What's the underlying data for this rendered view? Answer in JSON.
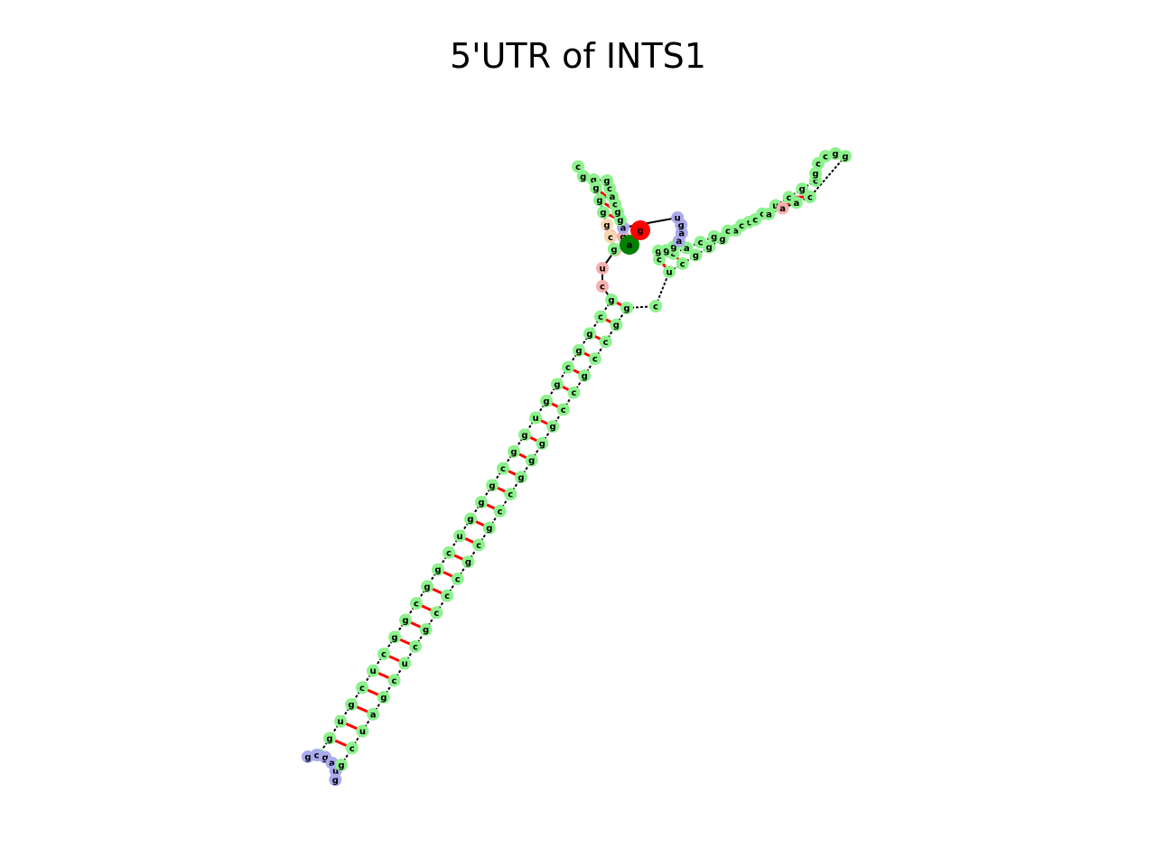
{
  "title": "5'UTR of INTS1",
  "colors": {
    "stem": "#8cf28c",
    "hairpin": "#aaaaee",
    "interior": "#fff2a8",
    "multiloop": "#f5b0b0",
    "bulge": "#f8d8b0",
    "pair_bond": "#ff0000",
    "start_marker": "#008000",
    "end_marker": "#ff0000"
  },
  "markers": {
    "start": "a",
    "end": "g"
  },
  "nucleotides": [
    {
      "b": "a",
      "t": "m"
    },
    {
      "b": "g",
      "t": "m"
    },
    {
      "b": "c",
      "t": "m"
    },
    {
      "b": "c",
      "t": "m"
    },
    {
      "b": "u",
      "t": "m"
    },
    {
      "b": "c",
      "t": "m"
    },
    {
      "b": "g",
      "t": "s"
    },
    {
      "b": "c",
      "t": "s"
    },
    {
      "b": "g",
      "t": "s"
    },
    {
      "b": "g",
      "t": "s"
    },
    {
      "b": "c",
      "t": "s"
    },
    {
      "b": "g",
      "t": "s"
    },
    {
      "b": "g",
      "t": "s"
    },
    {
      "b": "u",
      "t": "s"
    },
    {
      "b": "g",
      "t": "s"
    },
    {
      "b": "g",
      "t": "s"
    },
    {
      "b": "c",
      "t": "s"
    },
    {
      "b": "g",
      "t": "s"
    },
    {
      "b": "g",
      "t": "s"
    },
    {
      "b": "g",
      "t": "s"
    },
    {
      "b": "u",
      "t": "s"
    },
    {
      "b": "c",
      "t": "s"
    },
    {
      "b": "g",
      "t": "s"
    },
    {
      "b": "g",
      "t": "s"
    },
    {
      "b": "c",
      "t": "s"
    },
    {
      "b": "g",
      "t": "s"
    },
    {
      "b": "g",
      "t": "s"
    },
    {
      "b": "c",
      "t": "s"
    },
    {
      "b": "u",
      "t": "s"
    },
    {
      "b": "c",
      "t": "s"
    },
    {
      "b": "g",
      "t": "s"
    },
    {
      "b": "u",
      "t": "s"
    },
    {
      "b": "g",
      "t": "s"
    },
    {
      "b": "c",
      "t": "s"
    },
    {
      "b": "g",
      "t": "h"
    },
    {
      "b": "c",
      "t": "h"
    },
    {
      "b": "g",
      "t": "h"
    },
    {
      "b": "a",
      "t": "h"
    },
    {
      "b": "u",
      "t": "h"
    },
    {
      "b": "g",
      "t": "h"
    },
    {
      "b": "g",
      "t": "s"
    },
    {
      "b": "c",
      "t": "s"
    },
    {
      "b": "u",
      "t": "s"
    },
    {
      "b": "a",
      "t": "s"
    },
    {
      "b": "g",
      "t": "s"
    },
    {
      "b": "c",
      "t": "s"
    },
    {
      "b": "u",
      "t": "s"
    },
    {
      "b": "c",
      "t": "s"
    },
    {
      "b": "g",
      "t": "s"
    },
    {
      "b": "c",
      "t": "s"
    },
    {
      "b": "c",
      "t": "s"
    },
    {
      "b": "c",
      "t": "s"
    },
    {
      "b": "g",
      "t": "s"
    },
    {
      "b": "c",
      "t": "s"
    },
    {
      "b": "g",
      "t": "s"
    },
    {
      "b": "c",
      "t": "s"
    },
    {
      "b": "c",
      "t": "s"
    },
    {
      "b": "g",
      "t": "s"
    },
    {
      "b": "g",
      "t": "s"
    },
    {
      "b": "g",
      "t": "s"
    },
    {
      "b": "g",
      "t": "s"
    },
    {
      "b": "c",
      "t": "s"
    },
    {
      "b": "c",
      "t": "s"
    },
    {
      "b": "g",
      "t": "s"
    },
    {
      "b": "c",
      "t": "s"
    },
    {
      "b": "c",
      "t": "s"
    },
    {
      "b": "g",
      "t": "s"
    },
    {
      "b": "g",
      "t": "s"
    },
    {
      "b": "c",
      "t": "s"
    },
    {
      "b": "u",
      "t": "s"
    },
    {
      "b": "c",
      "t": "s"
    },
    {
      "b": "g",
      "t": "s"
    },
    {
      "b": "g",
      "t": "s"
    },
    {
      "b": "g",
      "t": "s"
    },
    {
      "b": "a",
      "t": "s"
    },
    {
      "b": "c",
      "t": "s"
    },
    {
      "b": "c",
      "t": "s"
    },
    {
      "b": "u",
      "t": "s"
    },
    {
      "b": "c",
      "t": "s"
    },
    {
      "b": "g",
      "t": "s"
    },
    {
      "b": "c",
      "t": "s"
    },
    {
      "b": "g",
      "t": "s"
    },
    {
      "b": "c",
      "t": "s"
    },
    {
      "b": "c",
      "t": "s"
    },
    {
      "b": "g",
      "t": "s"
    },
    {
      "b": "g",
      "t": "s"
    },
    {
      "b": "c",
      "t": "s"
    },
    {
      "b": "a",
      "t": "s"
    },
    {
      "b": "a",
      "t": "m"
    },
    {
      "b": "a",
      "t": "s"
    },
    {
      "b": "c",
      "t": "s"
    },
    {
      "b": "c",
      "t": "s"
    },
    {
      "b": "c",
      "t": "s"
    },
    {
      "b": "g",
      "t": "s"
    },
    {
      "b": "c",
      "t": "s"
    },
    {
      "b": "a",
      "t": "s"
    },
    {
      "b": "c",
      "t": "s"
    },
    {
      "b": "c",
      "t": "s"
    },
    {
      "b": "g",
      "t": "s"
    },
    {
      "b": "g",
      "t": "s"
    },
    {
      "b": "g",
      "t": "s"
    },
    {
      "b": "a",
      "t": "h"
    },
    {
      "b": "a",
      "t": "h"
    },
    {
      "b": "g",
      "t": "h"
    },
    {
      "b": "u",
      "t": "h"
    },
    {
      "b": "a",
      "t": "h"
    },
    {
      "b": "g",
      "t": "s"
    },
    {
      "b": "g",
      "t": "s"
    },
    {
      "b": "c",
      "t": "s"
    },
    {
      "b": "a",
      "t": "s"
    },
    {
      "b": "c",
      "t": "s"
    },
    {
      "b": "g",
      "t": "s"
    },
    {
      "b": "g",
      "t": "s"
    },
    {
      "b": "g",
      "t": "s"
    },
    {
      "b": "c",
      "t": "s"
    },
    {
      "b": "g",
      "t": "s"
    },
    {
      "b": "g",
      "t": "s"
    },
    {
      "b": "g",
      "t": "s"
    },
    {
      "b": "g",
      "t": "b"
    },
    {
      "b": "c",
      "t": "b"
    },
    {
      "b": "a",
      "t": "b"
    },
    {
      "b": "c",
      "t": "b"
    },
    {
      "b": "c",
      "t": "b"
    },
    {
      "b": "a",
      "t": "b"
    },
    {
      "b": "u",
      "t": "b"
    },
    {
      "b": "u",
      "t": "s"
    },
    {
      "b": "c",
      "t": "s"
    },
    {
      "b": "g",
      "t": "s"
    },
    {
      "b": "a",
      "t": "s"
    },
    {
      "b": "g",
      "t": "s"
    },
    {
      "b": "c",
      "t": "s"
    },
    {
      "b": "g",
      "t": "s"
    },
    {
      "b": "u",
      "t": "h"
    },
    {
      "b": "u",
      "t": "h"
    },
    {
      "b": "u",
      "t": "h"
    },
    {
      "b": "g",
      "t": "s"
    },
    {
      "b": "c",
      "t": "s"
    },
    {
      "b": "c",
      "t": "s"
    },
    {
      "b": "g",
      "t": "s"
    },
    {
      "b": "g",
      "t": "s"
    },
    {
      "b": "g",
      "t": "s"
    }
  ]
}
